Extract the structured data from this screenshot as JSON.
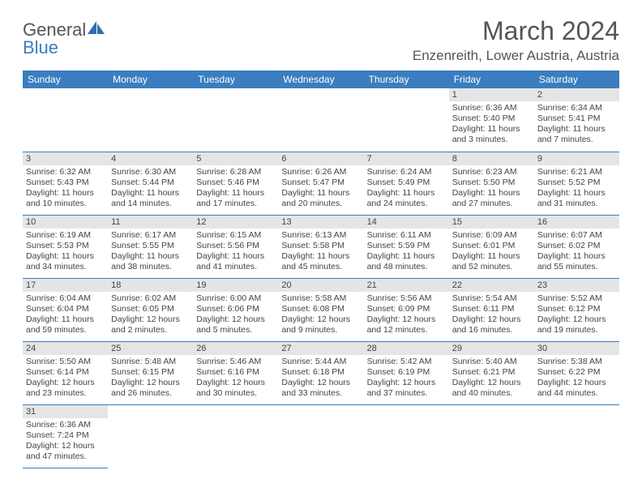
{
  "brand": {
    "part1": "General",
    "part2": "Blue"
  },
  "title": "March 2024",
  "location": "Enzenreith, Lower Austria, Austria",
  "colors": {
    "header_bg": "#3a7ebf",
    "header_fg": "#ffffff",
    "daynum_bg": "#e5e5e5",
    "border": "#3a7ebf",
    "text": "#444444",
    "title": "#555555"
  },
  "weekdays": [
    "Sunday",
    "Monday",
    "Tuesday",
    "Wednesday",
    "Thursday",
    "Friday",
    "Saturday"
  ],
  "weeks": [
    [
      null,
      null,
      null,
      null,
      null,
      {
        "num": "1",
        "sunrise": "Sunrise: 6:36 AM",
        "sunset": "Sunset: 5:40 PM",
        "daylight": "Daylight: 11 hours and 3 minutes."
      },
      {
        "num": "2",
        "sunrise": "Sunrise: 6:34 AM",
        "sunset": "Sunset: 5:41 PM",
        "daylight": "Daylight: 11 hours and 7 minutes."
      }
    ],
    [
      {
        "num": "3",
        "sunrise": "Sunrise: 6:32 AM",
        "sunset": "Sunset: 5:43 PM",
        "daylight": "Daylight: 11 hours and 10 minutes."
      },
      {
        "num": "4",
        "sunrise": "Sunrise: 6:30 AM",
        "sunset": "Sunset: 5:44 PM",
        "daylight": "Daylight: 11 hours and 14 minutes."
      },
      {
        "num": "5",
        "sunrise": "Sunrise: 6:28 AM",
        "sunset": "Sunset: 5:46 PM",
        "daylight": "Daylight: 11 hours and 17 minutes."
      },
      {
        "num": "6",
        "sunrise": "Sunrise: 6:26 AM",
        "sunset": "Sunset: 5:47 PM",
        "daylight": "Daylight: 11 hours and 20 minutes."
      },
      {
        "num": "7",
        "sunrise": "Sunrise: 6:24 AM",
        "sunset": "Sunset: 5:49 PM",
        "daylight": "Daylight: 11 hours and 24 minutes."
      },
      {
        "num": "8",
        "sunrise": "Sunrise: 6:23 AM",
        "sunset": "Sunset: 5:50 PM",
        "daylight": "Daylight: 11 hours and 27 minutes."
      },
      {
        "num": "9",
        "sunrise": "Sunrise: 6:21 AM",
        "sunset": "Sunset: 5:52 PM",
        "daylight": "Daylight: 11 hours and 31 minutes."
      }
    ],
    [
      {
        "num": "10",
        "sunrise": "Sunrise: 6:19 AM",
        "sunset": "Sunset: 5:53 PM",
        "daylight": "Daylight: 11 hours and 34 minutes."
      },
      {
        "num": "11",
        "sunrise": "Sunrise: 6:17 AM",
        "sunset": "Sunset: 5:55 PM",
        "daylight": "Daylight: 11 hours and 38 minutes."
      },
      {
        "num": "12",
        "sunrise": "Sunrise: 6:15 AM",
        "sunset": "Sunset: 5:56 PM",
        "daylight": "Daylight: 11 hours and 41 minutes."
      },
      {
        "num": "13",
        "sunrise": "Sunrise: 6:13 AM",
        "sunset": "Sunset: 5:58 PM",
        "daylight": "Daylight: 11 hours and 45 minutes."
      },
      {
        "num": "14",
        "sunrise": "Sunrise: 6:11 AM",
        "sunset": "Sunset: 5:59 PM",
        "daylight": "Daylight: 11 hours and 48 minutes."
      },
      {
        "num": "15",
        "sunrise": "Sunrise: 6:09 AM",
        "sunset": "Sunset: 6:01 PM",
        "daylight": "Daylight: 11 hours and 52 minutes."
      },
      {
        "num": "16",
        "sunrise": "Sunrise: 6:07 AM",
        "sunset": "Sunset: 6:02 PM",
        "daylight": "Daylight: 11 hours and 55 minutes."
      }
    ],
    [
      {
        "num": "17",
        "sunrise": "Sunrise: 6:04 AM",
        "sunset": "Sunset: 6:04 PM",
        "daylight": "Daylight: 11 hours and 59 minutes."
      },
      {
        "num": "18",
        "sunrise": "Sunrise: 6:02 AM",
        "sunset": "Sunset: 6:05 PM",
        "daylight": "Daylight: 12 hours and 2 minutes."
      },
      {
        "num": "19",
        "sunrise": "Sunrise: 6:00 AM",
        "sunset": "Sunset: 6:06 PM",
        "daylight": "Daylight: 12 hours and 5 minutes."
      },
      {
        "num": "20",
        "sunrise": "Sunrise: 5:58 AM",
        "sunset": "Sunset: 6:08 PM",
        "daylight": "Daylight: 12 hours and 9 minutes."
      },
      {
        "num": "21",
        "sunrise": "Sunrise: 5:56 AM",
        "sunset": "Sunset: 6:09 PM",
        "daylight": "Daylight: 12 hours and 12 minutes."
      },
      {
        "num": "22",
        "sunrise": "Sunrise: 5:54 AM",
        "sunset": "Sunset: 6:11 PM",
        "daylight": "Daylight: 12 hours and 16 minutes."
      },
      {
        "num": "23",
        "sunrise": "Sunrise: 5:52 AM",
        "sunset": "Sunset: 6:12 PM",
        "daylight": "Daylight: 12 hours and 19 minutes."
      }
    ],
    [
      {
        "num": "24",
        "sunrise": "Sunrise: 5:50 AM",
        "sunset": "Sunset: 6:14 PM",
        "daylight": "Daylight: 12 hours and 23 minutes."
      },
      {
        "num": "25",
        "sunrise": "Sunrise: 5:48 AM",
        "sunset": "Sunset: 6:15 PM",
        "daylight": "Daylight: 12 hours and 26 minutes."
      },
      {
        "num": "26",
        "sunrise": "Sunrise: 5:46 AM",
        "sunset": "Sunset: 6:16 PM",
        "daylight": "Daylight: 12 hours and 30 minutes."
      },
      {
        "num": "27",
        "sunrise": "Sunrise: 5:44 AM",
        "sunset": "Sunset: 6:18 PM",
        "daylight": "Daylight: 12 hours and 33 minutes."
      },
      {
        "num": "28",
        "sunrise": "Sunrise: 5:42 AM",
        "sunset": "Sunset: 6:19 PM",
        "daylight": "Daylight: 12 hours and 37 minutes."
      },
      {
        "num": "29",
        "sunrise": "Sunrise: 5:40 AM",
        "sunset": "Sunset: 6:21 PM",
        "daylight": "Daylight: 12 hours and 40 minutes."
      },
      {
        "num": "30",
        "sunrise": "Sunrise: 5:38 AM",
        "sunset": "Sunset: 6:22 PM",
        "daylight": "Daylight: 12 hours and 44 minutes."
      }
    ],
    [
      {
        "num": "31",
        "sunrise": "Sunrise: 6:36 AM",
        "sunset": "Sunset: 7:24 PM",
        "daylight": "Daylight: 12 hours and 47 minutes."
      },
      null,
      null,
      null,
      null,
      null,
      null
    ]
  ]
}
